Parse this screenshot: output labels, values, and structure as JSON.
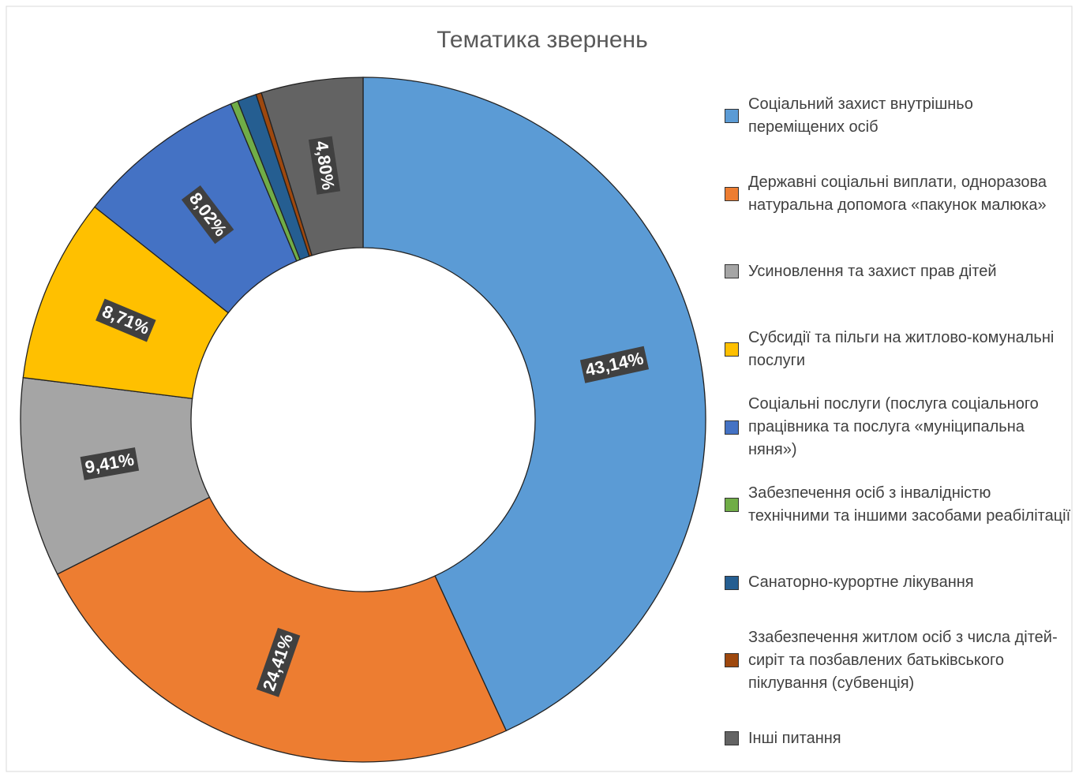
{
  "chart_data": {
    "type": "donut",
    "title": "Тематика звернень",
    "categories": [
      "Соціальний захист внутрішньо переміщених осіб",
      "Державні соціальні виплати, одноразова натуральна допомога «пакунок малюка»",
      "Усиновлення та захист прав дітей",
      "Субсидії та пільги на житлово-комунальні послуги",
      "Соціальні послуги (послуга соціального працівника та послуга «муніципальна няня»)",
      "Забезпечення осіб з інвалідністю технічними та іншими засобами реабілітації",
      "Санаторно-курортне лікування",
      "Ззабезпечення житлом осіб з числа дітей-сиріт та позбавлених батьківського піклування (субвенція)",
      "Інші питання"
    ],
    "values": [
      43.14,
      24.41,
      9.41,
      8.71,
      8.02,
      0.35,
      0.9,
      0.26,
      4.8
    ],
    "value_labels": [
      "43,14%",
      "24,41%",
      "9,41%",
      "8,71%",
      "8,02%",
      null,
      null,
      null,
      "4,80%"
    ],
    "colors": [
      "#5B9BD5",
      "#ED7D31",
      "#A5A5A5",
      "#FFC000",
      "#4472C4",
      "#70AD47",
      "#255E91",
      "#9E480E",
      "#636363"
    ],
    "legend": "right"
  }
}
